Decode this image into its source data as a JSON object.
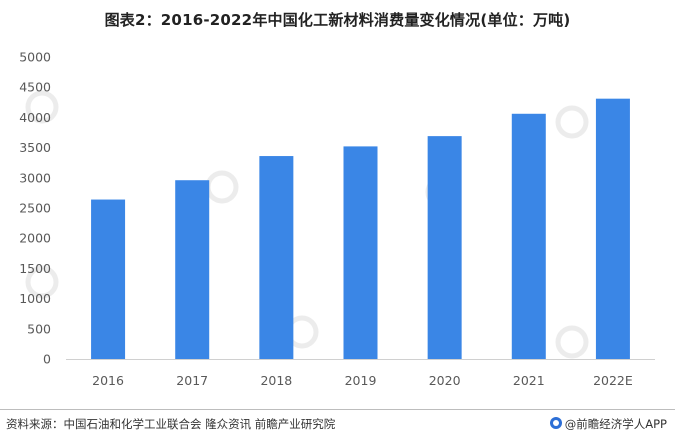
{
  "title": "图表2：2016-2022年中国化工新材料消费量变化情况(单位：万吨)",
  "footer": {
    "source": "资料来源：中国石油和化学工业联合会 隆众资讯 前瞻产业研究院",
    "brand_icon": "qianzhan-logo-icon",
    "brand_text": "@前瞻经济学人APP"
  },
  "colors": {
    "bar": "#3a86e6",
    "axis": "#d0d0d0",
    "text": "#595959"
  },
  "chart_data": {
    "type": "bar",
    "title": "图表2：2016-2022年中国化工新材料消费量变化情况(单位：万吨)",
    "categories": [
      "2016",
      "2017",
      "2018",
      "2019",
      "2020",
      "2021",
      "2022E"
    ],
    "values": [
      2640,
      2960,
      3360,
      3520,
      3690,
      4060,
      4310
    ],
    "ylim": [
      0,
      5000
    ],
    "yticks": [
      0,
      500,
      1000,
      1500,
      2000,
      2500,
      3000,
      3500,
      4000,
      4500,
      5000
    ],
    "xlabel": "",
    "ylabel": "",
    "grid": false,
    "legend": "none"
  }
}
